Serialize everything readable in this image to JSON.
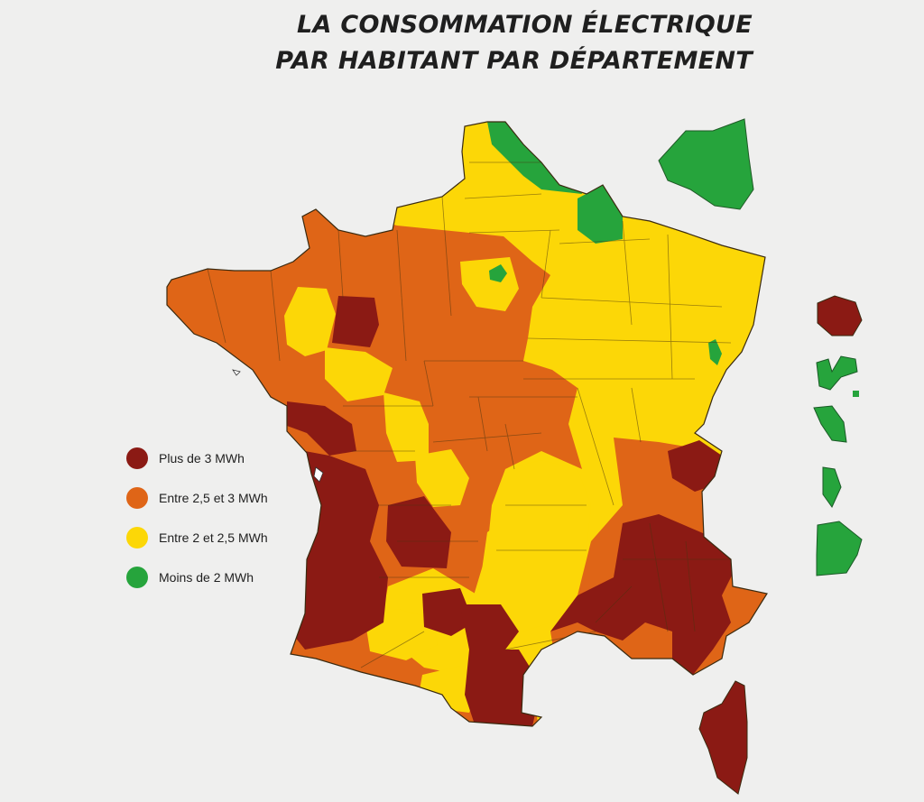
{
  "title": {
    "line1": "LA CONSOMMATION ÉLECTRIQUE",
    "line2": "PAR HABITANT PAR DÉPARTEMENT"
  },
  "colors": {
    "plus_3": "#8b1a14",
    "entre_25_3": "#df6517",
    "entre_2_25": "#fcd707",
    "moins_2": "#26a43c",
    "border": "#3a2a10",
    "background": "#efefee"
  },
  "legend": [
    {
      "label": "Plus de 3 MWh",
      "color": "#8b1a14"
    },
    {
      "label": "Entre 2,5 et 3 MWh",
      "color": "#df6517"
    },
    {
      "label": "Entre 2 et 2,5 MWh",
      "color": "#fcd707"
    },
    {
      "label": "Moins de 2 MWh",
      "color": "#26a43c"
    }
  ]
}
